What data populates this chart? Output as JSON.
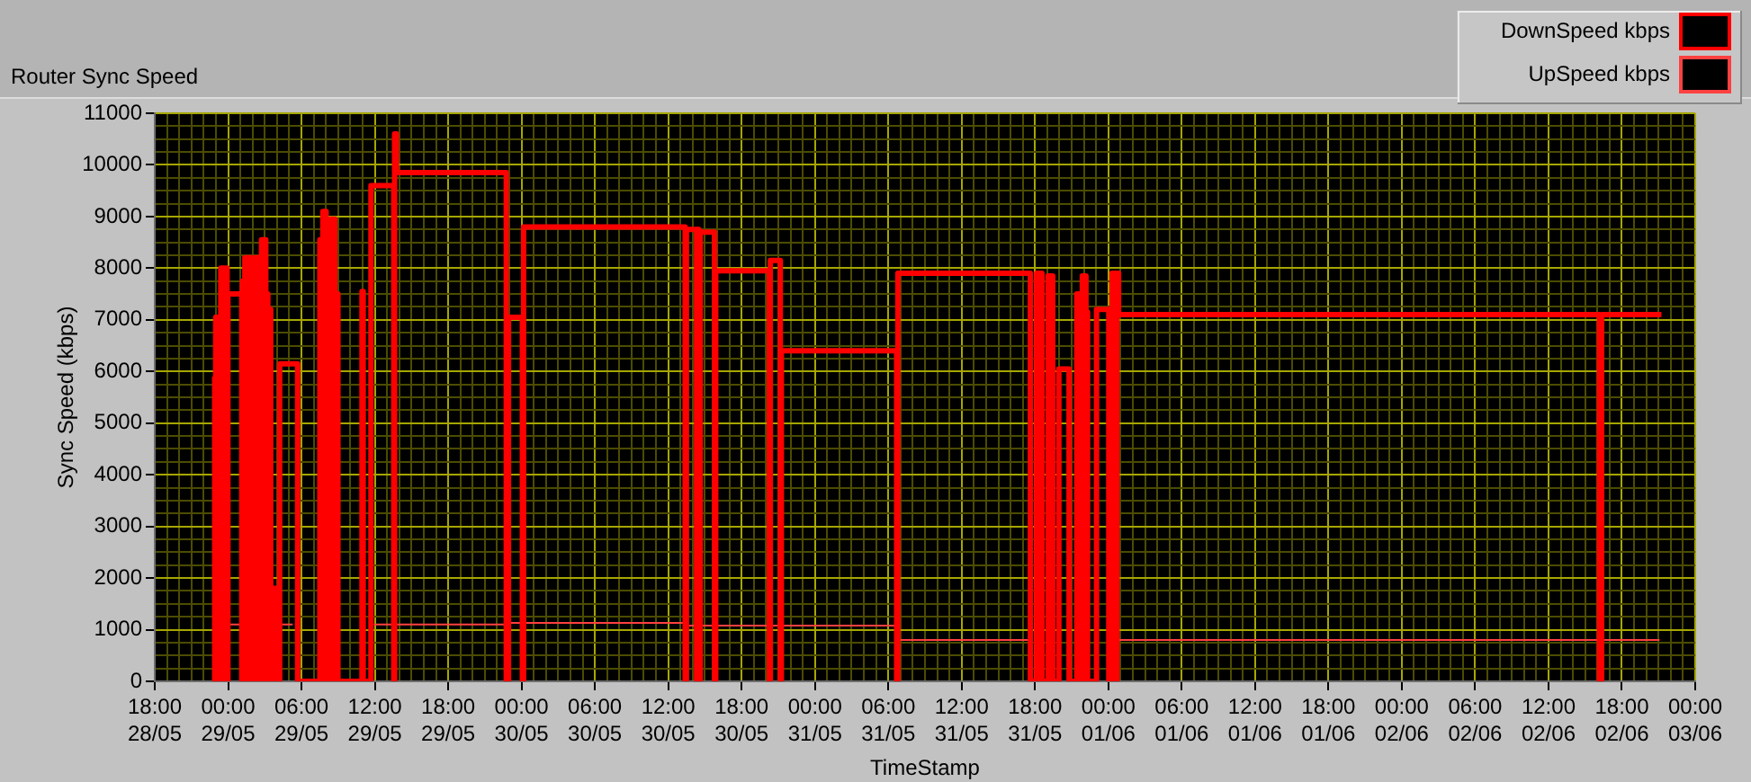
{
  "chart_data": {
    "type": "step",
    "title": "Router Sync Speed",
    "xlabel": "TimeStamp",
    "ylabel": "Sync Speed (kbps)",
    "xlim": [
      "--05-28T18:00",
      "--06-03T00:00"
    ],
    "xticks": [
      {
        "value": "--05-28T18:00",
        "label": "18:00\n28/05"
      },
      {
        "value": "--05-28T19:00",
        "label": null
      },
      {
        "value": "--05-28T20:00",
        "label": null
      },
      {
        "value": "--05-28T21:00",
        "label": null
      },
      {
        "value": "--05-28T22:00",
        "label": null
      },
      {
        "value": "--05-28T23:00",
        "label": null
      },
      {
        "value": "--05-29T00:00",
        "label": "00:00\n29/05"
      },
      {
        "value": "--05-29T01:00",
        "label": null
      },
      {
        "value": "--05-29T02:00",
        "label": null
      },
      {
        "value": "--05-29T03:00",
        "label": null
      },
      {
        "value": "--05-29T04:00",
        "label": null
      },
      {
        "value": "--05-29T05:00",
        "label": null
      },
      {
        "value": "--05-29T06:00",
        "label": "06:00\n29/05"
      },
      {
        "value": "--05-29T07:00",
        "label": null
      },
      {
        "value": "--05-29T08:00",
        "label": null
      },
      {
        "value": "--05-29T09:00",
        "label": null
      },
      {
        "value": "--05-29T10:00",
        "label": null
      },
      {
        "value": "--05-29T11:00",
        "label": null
      },
      {
        "value": "--05-29T12:00",
        "label": "12:00\n29/05"
      },
      {
        "value": "--05-29T13:00",
        "label": null
      },
      {
        "value": "--05-29T14:00",
        "label": null
      },
      {
        "value": "--05-29T15:00",
        "label": null
      },
      {
        "value": "--05-29T16:00",
        "label": null
      },
      {
        "value": "--05-29T17:00",
        "label": null
      },
      {
        "value": "--05-29T18:00",
        "label": "18:00\n29/05"
      },
      {
        "value": "--05-29T19:00",
        "label": null
      },
      {
        "value": "--05-29T20:00",
        "label": null
      },
      {
        "value": "--05-29T21:00",
        "label": null
      },
      {
        "value": "--05-29T22:00",
        "label": null
      },
      {
        "value": "--05-29T23:00",
        "label": null
      },
      {
        "value": "--05-30T00:00",
        "label": "00:00\n30/05"
      },
      {
        "value": "--05-30T01:00",
        "label": null
      },
      {
        "value": "--05-30T02:00",
        "label": null
      },
      {
        "value": "--05-30T03:00",
        "label": null
      },
      {
        "value": "--05-30T04:00",
        "label": null
      },
      {
        "value": "--05-30T05:00",
        "label": null
      },
      {
        "value": "--05-30T06:00",
        "label": "06:00\n30/05"
      },
      {
        "value": "--05-30T07:00",
        "label": null
      },
      {
        "value": "--05-30T08:00",
        "label": null
      },
      {
        "value": "--05-30T09:00",
        "label": null
      },
      {
        "value": "--05-30T10:00",
        "label": null
      },
      {
        "value": "--05-30T11:00",
        "label": null
      },
      {
        "value": "--05-30T12:00",
        "label": "12:00\n30/05"
      },
      {
        "value": "--05-30T13:00",
        "label": null
      },
      {
        "value": "--05-30T14:00",
        "label": null
      },
      {
        "value": "--05-30T15:00",
        "label": null
      },
      {
        "value": "--05-30T16:00",
        "label": null
      },
      {
        "value": "--05-30T17:00",
        "label": null
      },
      {
        "value": "--05-30T18:00",
        "label": "18:00\n30/05"
      },
      {
        "value": "--05-30T19:00",
        "label": null
      },
      {
        "value": "--05-30T20:00",
        "label": null
      },
      {
        "value": "--05-30T21:00",
        "label": null
      },
      {
        "value": "--05-30T22:00",
        "label": null
      },
      {
        "value": "--05-30T23:00",
        "label": null
      },
      {
        "value": "--05-31T00:00",
        "label": "00:00\n31/05"
      },
      {
        "value": "--05-31T01:00",
        "label": null
      },
      {
        "value": "--05-31T02:00",
        "label": null
      },
      {
        "value": "--05-31T03:00",
        "label": null
      },
      {
        "value": "--05-31T04:00",
        "label": null
      },
      {
        "value": "--05-31T05:00",
        "label": null
      },
      {
        "value": "--05-31T06:00",
        "label": "06:00\n31/05"
      },
      {
        "value": "--05-31T07:00",
        "label": null
      },
      {
        "value": "--05-31T08:00",
        "label": null
      },
      {
        "value": "--05-31T09:00",
        "label": null
      },
      {
        "value": "--05-31T10:00",
        "label": null
      },
      {
        "value": "--05-31T11:00",
        "label": null
      },
      {
        "value": "--05-31T12:00",
        "label": "12:00\n31/05"
      },
      {
        "value": "--05-31T13:00",
        "label": null
      },
      {
        "value": "--05-31T14:00",
        "label": null
      },
      {
        "value": "--05-31T15:00",
        "label": null
      },
      {
        "value": "--05-31T16:00",
        "label": null
      },
      {
        "value": "--05-31T17:00",
        "label": null
      },
      {
        "value": "--05-31T18:00",
        "label": "18:00\n31/05"
      },
      {
        "value": "--05-31T19:00",
        "label": null
      },
      {
        "value": "--05-31T20:00",
        "label": null
      },
      {
        "value": "--05-31T21:00",
        "label": null
      },
      {
        "value": "--05-31T22:00",
        "label": null
      },
      {
        "value": "--05-31T23:00",
        "label": null
      },
      {
        "value": "--06-01T00:00",
        "label": "00:00\n01/06"
      },
      {
        "value": "--06-01T01:00",
        "label": null
      },
      {
        "value": "--06-01T02:00",
        "label": null
      },
      {
        "value": "--06-01T03:00",
        "label": null
      },
      {
        "value": "--06-01T04:00",
        "label": null
      },
      {
        "value": "--06-01T05:00",
        "label": null
      },
      {
        "value": "--06-01T06:00",
        "label": "06:00\n01/06"
      },
      {
        "value": "--06-01T07:00",
        "label": null
      },
      {
        "value": "--06-01T08:00",
        "label": null
      },
      {
        "value": "--06-01T09:00",
        "label": null
      },
      {
        "value": "--06-01T10:00",
        "label": null
      },
      {
        "value": "--06-01T11:00",
        "label": null
      },
      {
        "value": "--06-01T12:00",
        "label": "12:00\n01/06"
      },
      {
        "value": "--06-01T13:00",
        "label": null
      },
      {
        "value": "--06-01T14:00",
        "label": null
      },
      {
        "value": "--06-01T15:00",
        "label": null
      },
      {
        "value": "--06-01T16:00",
        "label": null
      },
      {
        "value": "--06-01T17:00",
        "label": null
      },
      {
        "value": "--06-01T18:00",
        "label": "18:00\n01/06"
      },
      {
        "value": "--06-01T19:00",
        "label": null
      },
      {
        "value": "--06-01T20:00",
        "label": null
      },
      {
        "value": "--06-01T21:00",
        "label": null
      },
      {
        "value": "--06-01T22:00",
        "label": null
      },
      {
        "value": "--06-01T23:00",
        "label": null
      },
      {
        "value": "--06-02T00:00",
        "label": "00:00\n02/06"
      },
      {
        "value": "--06-02T01:00",
        "label": null
      },
      {
        "value": "--06-02T02:00",
        "label": null
      },
      {
        "value": "--06-02T03:00",
        "label": null
      },
      {
        "value": "--06-02T04:00",
        "label": null
      },
      {
        "value": "--06-02T05:00",
        "label": null
      },
      {
        "value": "--06-02T06:00",
        "label": "06:00\n02/06"
      },
      {
        "value": "--06-02T07:00",
        "label": null
      },
      {
        "value": "--06-02T08:00",
        "label": null
      },
      {
        "value": "--06-02T09:00",
        "label": null
      },
      {
        "value": "--06-02T10:00",
        "label": null
      },
      {
        "value": "--06-02T11:00",
        "label": null
      },
      {
        "value": "--06-02T12:00",
        "label": "12:00\n02/06"
      },
      {
        "value": "--06-02T13:00",
        "label": null
      },
      {
        "value": "--06-02T14:00",
        "label": null
      },
      {
        "value": "--06-02T15:00",
        "label": null
      },
      {
        "value": "--06-02T16:00",
        "label": null
      },
      {
        "value": "--06-02T17:00",
        "label": null
      },
      {
        "value": "--06-02T18:00",
        "label": "18:00\n02/06"
      },
      {
        "value": "--06-02T19:00",
        "label": null
      },
      {
        "value": "--06-02T20:00",
        "label": null
      },
      {
        "value": "--06-02T21:00",
        "label": null
      },
      {
        "value": "--06-02T22:00",
        "label": null
      },
      {
        "value": "--06-02T23:00",
        "label": null
      },
      {
        "value": "--06-03T00:00",
        "label": "00:00\n03/06"
      }
    ],
    "ylim": [
      0,
      11000
    ],
    "yticks": [
      0,
      {
        "value": 250,
        "label": null
      },
      {
        "value": 500,
        "label": null
      },
      {
        "value": 750,
        "label": null
      },
      1000,
      {
        "value": 1250,
        "label": null
      },
      {
        "value": 1500,
        "label": null
      },
      {
        "value": 1750,
        "label": null
      },
      2000,
      {
        "value": 2250,
        "label": null
      },
      {
        "value": 2500,
        "label": null
      },
      {
        "value": 2750,
        "label": null
      },
      3000,
      {
        "value": 3250,
        "label": null
      },
      {
        "value": 3500,
        "label": null
      },
      {
        "value": 3750,
        "label": null
      },
      4000,
      {
        "value": 4250,
        "label": null
      },
      {
        "value": 4500,
        "label": null
      },
      {
        "value": 4750,
        "label": null
      },
      5000,
      {
        "value": 5250,
        "label": null
      },
      {
        "value": 5500,
        "label": null
      },
      {
        "value": 5750,
        "label": null
      },
      6000,
      {
        "value": 6250,
        "label": null
      },
      {
        "value": 6500,
        "label": null
      },
      {
        "value": 6750,
        "label": null
      },
      7000,
      {
        "value": 7250,
        "label": null
      },
      {
        "value": 7500,
        "label": null
      },
      {
        "value": 7750,
        "label": null
      },
      8000,
      {
        "value": 8250,
        "label": null
      },
      {
        "value": 8500,
        "label": null
      },
      {
        "value": 8750,
        "label": null
      },
      9000,
      {
        "value": 9250,
        "label": null
      },
      {
        "value": 9500,
        "label": null
      },
      {
        "value": 9750,
        "label": null
      },
      10000,
      {
        "value": 10250,
        "label": null
      },
      {
        "value": 10500,
        "label": null
      },
      {
        "value": 10750,
        "label": null
      },
      11000
    ],
    "grid": true,
    "legend": "top right",
    "marker": "none",
    "line_style": "solid",
    "series": [
      {
        "name": "DownSpeed kbps",
        "color": "#ff0000",
        "x": [
          "--05-28T22:48",
          "--05-28T22:54",
          "--05-28T22:59",
          "--05-28T23:06",
          "--05-28T23:10",
          "--05-28T23:17",
          "--05-28T23:24",
          "--05-28T23:31",
          "--05-28T23:35",
          "--05-28T23:42",
          "--05-28T23:48",
          "--05-28T23:55",
          "--05-28T23:59",
          "--05-29T01:07",
          "--05-29T01:10",
          "--05-29T01:18",
          "--05-29T01:22",
          "--05-29T01:30",
          "--05-29T01:36",
          "--05-29T01:43",
          "--05-29T01:47",
          "--05-29T01:54",
          "--05-29T02:00",
          "--05-29T02:07",
          "--05-29T02:13",
          "--05-29T02:20",
          "--05-29T02:25",
          "--05-29T02:36",
          "--05-29T02:44",
          "--05-29T02:52",
          "--05-29T02:57",
          "--05-29T03:05",
          "--05-29T03:08",
          "--05-29T03:15",
          "--05-29T03:20",
          "--05-29T03:29",
          "--05-29T03:35",
          "--05-29T03:55",
          "--05-29T04:13",
          "--05-29T05:41",
          "--05-29T07:30",
          "--05-29T07:38",
          "--05-29T07:42",
          "--05-29T07:45",
          "--05-29T07:52",
          "--05-29T07:57",
          "--05-29T08:01",
          "--05-29T08:08",
          "--05-29T08:14",
          "--05-29T08:21",
          "--05-29T08:24",
          "--05-29T08:31",
          "--05-29T08:37",
          "--05-29T08:44",
          "--05-29T08:50",
          "--05-29T08:59",
          "--05-29T10:57",
          "--05-29T11:03",
          "--05-29T11:41",
          "--05-29T13:33",
          "--05-29T13:37",
          "--05-29T13:46",
          "--05-29T22:45",
          "--05-29T22:56",
          "--05-30T00:04",
          "--05-30T00:10",
          "--05-30T13:23",
          "--05-30T13:29",
          "--05-30T14:19",
          "--05-30T14:24",
          "--05-30T14:30",
          "--05-30T14:37",
          "--05-30T15:47",
          "--05-30T15:53",
          "--05-30T20:16",
          "--05-30T20:21",
          "--05-30T21:10",
          "--05-30T21:15",
          "--05-31T06:41",
          "--05-31T06:47",
          "--05-31T17:37",
          "--05-31T18:08",
          "--05-31T18:34",
          "--05-31T19:04",
          "--05-31T19:27",
          "--05-31T19:57",
          "--05-31T20:47",
          "--05-31T21:25",
          "--05-31T21:33",
          "--05-31T21:38",
          "--05-31T21:45",
          "--05-31T21:52",
          "--05-31T22:00",
          "--05-31T22:04",
          "--05-31T22:10",
          "--05-31T22:18",
          "--05-31T23:02",
          "--06-01T00:02",
          "--06-01T00:06",
          "--06-01T00:12",
          "--06-01T00:18",
          "--06-01T00:25",
          "--06-01T00:30",
          "--06-01T00:37",
          "--06-01T00:42",
          "--06-01T00:50",
          "--06-02T16:10",
          "--06-02T16:21",
          "--06-02T21:14"
        ],
        "values": [
          5900,
          0,
          7050,
          0,
          7050,
          0,
          8000,
          0,
          8000,
          0,
          8000,
          0,
          7500,
          0,
          7750,
          0,
          8200,
          0,
          8200,
          0,
          8200,
          0,
          8200,
          0,
          8200,
          0,
          8200,
          0,
          8550,
          0,
          8550,
          0,
          7500,
          0,
          7200,
          0,
          1800,
          0,
          6150,
          0,
          8550,
          0,
          8550,
          9100,
          0,
          9100,
          8550,
          0,
          8550,
          0,
          8950,
          0,
          8950,
          0,
          7500,
          0,
          7550,
          0,
          9600,
          0,
          10600,
          9850,
          0,
          7050,
          0,
          8800,
          0,
          8750,
          0,
          8750,
          0,
          8700,
          0,
          7950,
          0,
          8150,
          0,
          6400,
          0,
          7900,
          0,
          7900,
          0,
          7850,
          0,
          6050,
          0,
          7500,
          0,
          7500,
          0,
          7850,
          0,
          7850,
          7150,
          0,
          7200,
          0,
          6550,
          0,
          7900,
          0,
          7900,
          0,
          7900,
          7100,
          0,
          7100,
          7100
        ]
      },
      {
        "name": "UpSpeed kbps",
        "color": "#ff4040",
        "x": [
          "--05-28T23:59",
          "--05-29T05:17",
          "--05-29T05:41",
          "--05-29T11:55",
          "--05-29T22:56",
          "--05-30T13:29",
          "--05-31T06:44",
          "--05-31T17:37",
          "--05-31T17:40",
          "--06-01T00:50",
          "--06-02T21:05"
        ],
        "values": [
          1100,
          1100,
          null,
          1100,
          1130,
          1080,
          800,
          800,
          null,
          800,
          800
        ]
      }
    ]
  }
}
